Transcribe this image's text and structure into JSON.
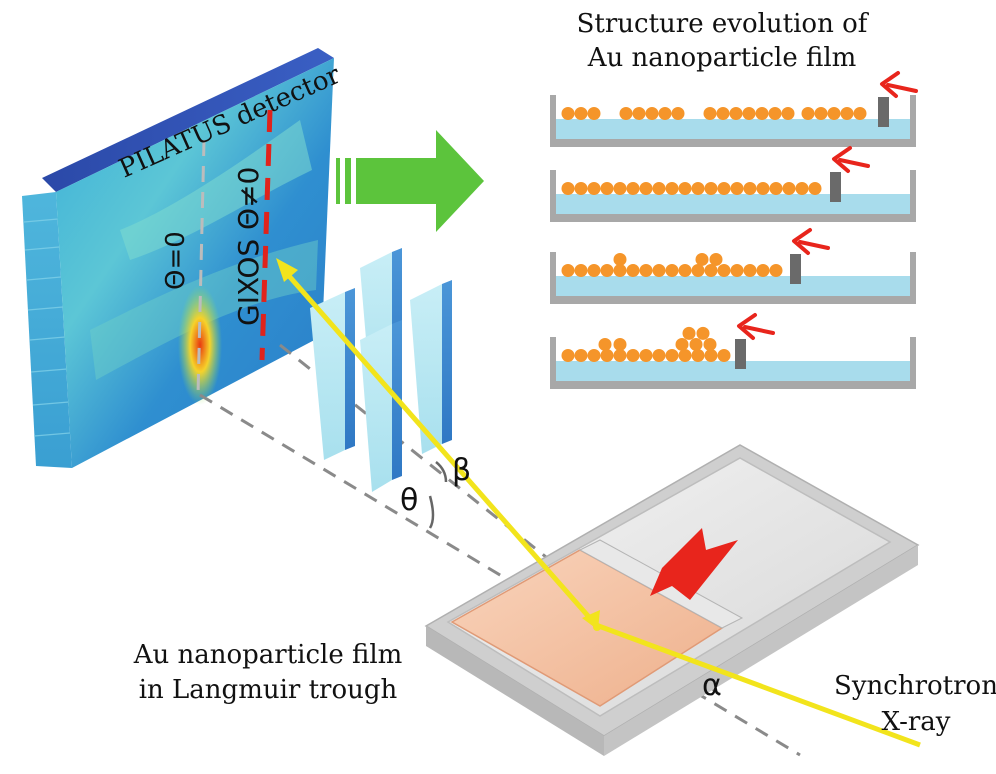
{
  "detector": {
    "title": "PILATUS detector",
    "label_center": "Θ=0",
    "label_gixos": "GIXOS Θ≠0"
  },
  "evolution": {
    "title_line1": "Structure evolution of",
    "title_line2": "Au nanoparticle film"
  },
  "trough": {
    "label_line1": "Au nanoparticle film",
    "label_line2": "in Langmuir trough"
  },
  "beam": {
    "label_line1": "Synchrotron",
    "label_line2": "X-ray"
  },
  "angles": {
    "alpha": "α",
    "beta": "β",
    "theta": "θ"
  },
  "colors": {
    "beam": "#f2e41c",
    "arrow_red": "#e8251c",
    "arrow_green": "#5cc43c",
    "particle": "#f5952a",
    "water": "#a8dcec",
    "trough": "#a8a8a8",
    "barrier": "#6a6a6a",
    "film": "#f6c6a6"
  }
}
